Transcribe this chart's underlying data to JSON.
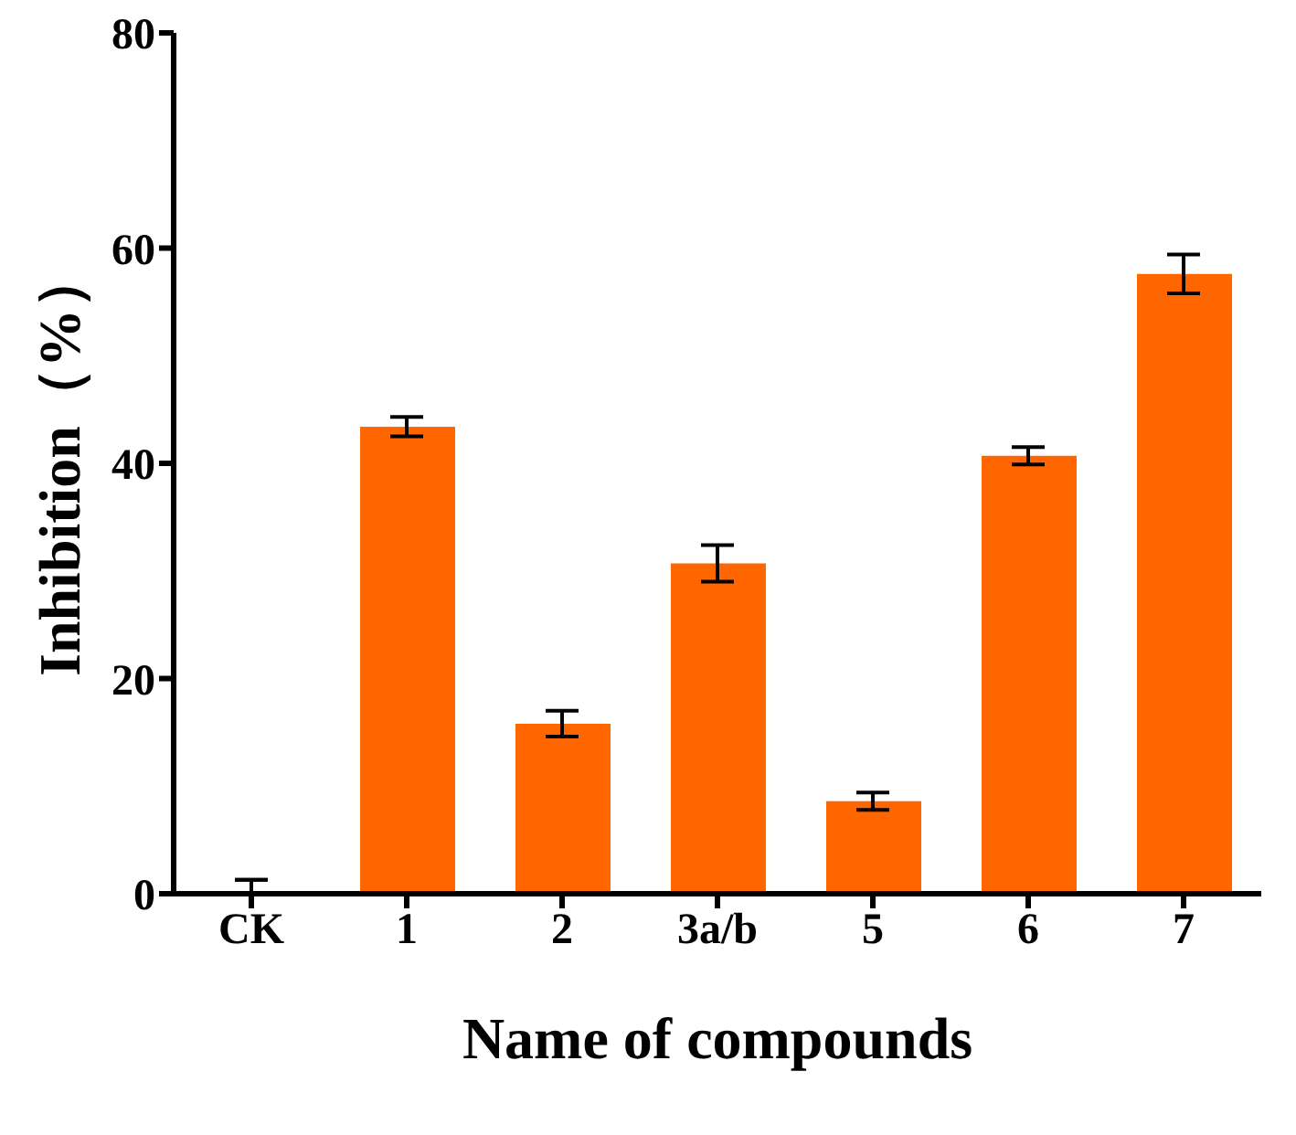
{
  "chart_data": {
    "type": "bar",
    "xlabel": "Name of compounds",
    "ylabel": "Inhibition（%）",
    "categories": [
      "CK",
      "1",
      "2",
      "3a/b",
      "5",
      "6",
      "7"
    ],
    "values": [
      0,
      43.4,
      15.8,
      30.7,
      8.6,
      40.7,
      57.6
    ],
    "errors": [
      [
        0,
        1.3
      ],
      0.9,
      1.2,
      1.7,
      0.8,
      0.8,
      1.8
    ],
    "color": "#ff6600",
    "ylim": [
      0,
      80
    ],
    "yticks": [
      0,
      20,
      40,
      60,
      80
    ],
    "grid": false,
    "legend": false
  }
}
